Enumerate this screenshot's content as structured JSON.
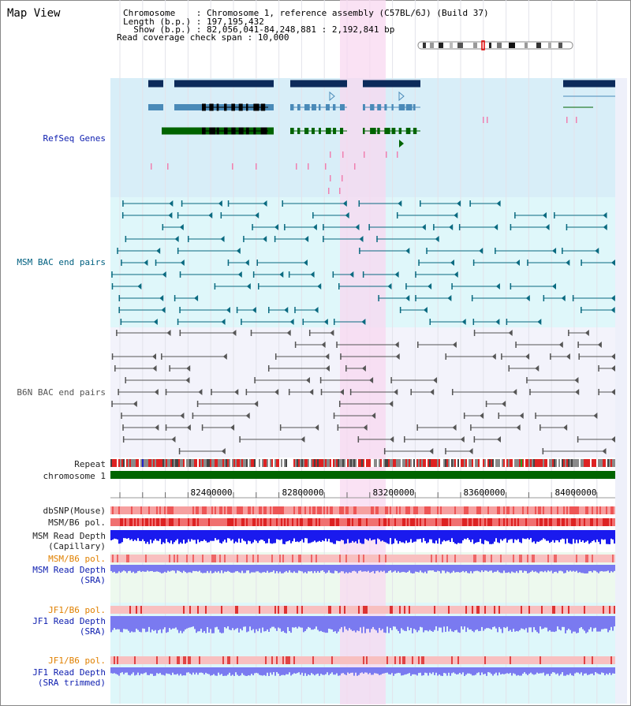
{
  "title": "Map View",
  "header": {
    "chromosome_label": "Chromosome    ",
    "chromosome_value": ": Chromosome 1, reference assembly (C57BL/6J) (Build 37)",
    "length_label": "Length (b.p.) ",
    "length_value": ": 197,195,432",
    "show_label": "  Show (b.p.) ",
    "show_value": ": 82,056,041-84,248,881 : 2,192,841 bp",
    "coverage_text": "Read coverage check span : 10,000"
  },
  "tracks": {
    "refseq": "RefSeq Genes",
    "msm_bac": "MSM BAC end pairs",
    "b6n_bac": "B6N BAC end pairs",
    "repeat": "Repeat",
    "chromosome": "chromosome 1",
    "dbsnp": "dbSNP(Mouse)",
    "msm_b6_pol_1": "MSM/B6 pol.",
    "msm_read_depth_cap_1": "MSM Read Depth",
    "msm_read_depth_cap_2": "(Capillary)",
    "msm_b6_pol_2": "MSM/B6 pol.",
    "msm_read_depth_sra_1": "MSM Read Depth",
    "msm_read_depth_sra_2": "(SRA)",
    "jf1_b6_pol_1": "JF1/B6 pol.",
    "jf1_read_depth_sra_1": "JF1 Read Depth",
    "jf1_read_depth_sra_2": "(SRA)",
    "jf1_b6_pol_2": "JF1/B6 pol.",
    "jf1_read_depth_trim_1": "JF1 Read Depth",
    "jf1_read_depth_trim_2": "(SRA trimmed)"
  },
  "axis": {
    "ticks": [
      "82400000",
      "82800000",
      "83200000",
      "83600000",
      "84000000"
    ]
  },
  "colors": {
    "refseq_bg": "#d8eef8",
    "msm_bg": "#dff7fa",
    "b6n_bg": "#f3f3fb",
    "highlight": "#f8d8f0",
    "chromosome_bar": "#006400",
    "gene_navy": "#0c2a5a",
    "gene_steel": "#4a8ab8",
    "gene_green": "#006400",
    "msm_line": "#0a6a80",
    "b6n_line": "#555555",
    "depth_blue": "#1a1aee",
    "depth_lavender": "#7a7af0",
    "pol_red": "#ee4444"
  }
}
